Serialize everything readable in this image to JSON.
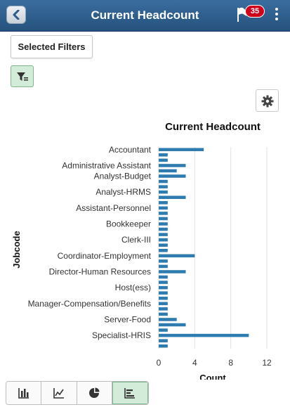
{
  "header": {
    "title": "Current Headcount",
    "back_icon": "chevron-left-icon",
    "notification_icon": "flag-icon",
    "notification_count": "35",
    "menu_icon": "kebab-menu-icon",
    "bar_color": "#2d5b8a"
  },
  "toolbar": {
    "selected_filters_label": "Selected Filters",
    "filter_toggle_icon": "filter-icon",
    "settings_icon": "gear-icon"
  },
  "chart_type_buttons": [
    {
      "icon": "bar-chart-icon",
      "active": false
    },
    {
      "icon": "line-chart-icon",
      "active": false
    },
    {
      "icon": "pie-chart-icon",
      "active": false
    },
    {
      "icon": "horizontal-bar-chart-icon",
      "active": true
    }
  ],
  "chart_data": {
    "type": "bar",
    "orientation": "horizontal",
    "title": "Current Headcount",
    "xlabel": "Count",
    "ylabel": "Jobcode",
    "xlim": [
      0,
      12
    ],
    "xticks": [
      0,
      4,
      8,
      12
    ],
    "grid": true,
    "bar_color": "#2e7bb0",
    "categories": [
      "Accountant",
      "",
      "",
      "Administrative Assistant",
      "",
      "Analyst-Budget",
      "",
      "",
      "Analyst-HRMS",
      "",
      "",
      "Assistant-Personnel",
      "",
      "",
      "Bookkeeper",
      "",
      "",
      "Clerk-III",
      "",
      "",
      "Coordinator-Employment",
      "",
      "",
      "Director-Human Resources",
      "",
      "",
      "Host(ess)",
      "",
      "",
      "Manager-Compensation/Benefits",
      "",
      "",
      "Server-Food",
      "",
      "",
      "Specialist-HRIS",
      "",
      ""
    ],
    "values": [
      5,
      1,
      1,
      3,
      2,
      3,
      1,
      1,
      1,
      3,
      1,
      1,
      1,
      1,
      1,
      1,
      1,
      1,
      1,
      1,
      4,
      1,
      1,
      3,
      1,
      1,
      1,
      1,
      1,
      1,
      1,
      1,
      2,
      3,
      1,
      10,
      1,
      1
    ]
  }
}
